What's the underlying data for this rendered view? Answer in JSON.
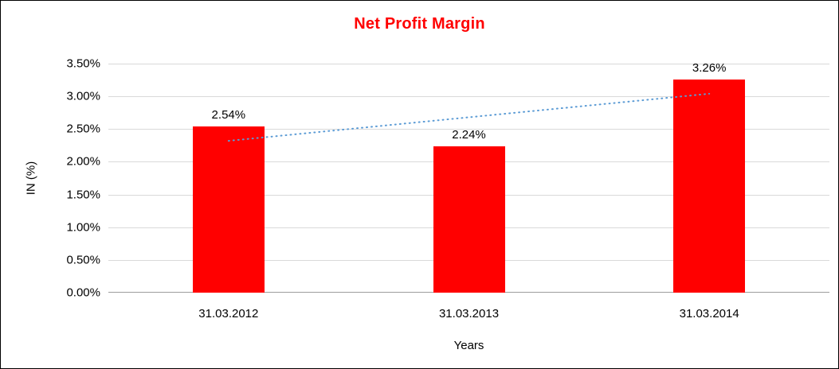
{
  "chart_data": {
    "type": "bar",
    "title": "Net Profit Margin",
    "xlabel": "Years",
    "ylabel": "IN (%)",
    "categories": [
      "31.03.2012",
      "31.03.2013",
      "31.03.2014"
    ],
    "values": [
      2.54,
      2.24,
      3.26
    ],
    "data_labels": [
      "2.54%",
      "2.24%",
      "3.26%"
    ],
    "ylim": [
      0,
      3.5
    ],
    "ytick_step": 0.5,
    "ytick_labels": [
      "0.00%",
      "0.50%",
      "1.00%",
      "1.50%",
      "2.00%",
      "2.50%",
      "3.00%",
      "3.50%"
    ],
    "grid": true,
    "legend": "none",
    "trendline": {
      "style": "dotted",
      "start_value": 2.32,
      "end_value": 3.04
    },
    "colors": {
      "bar": "#ff0000",
      "title": "#ff0000",
      "trendline": "#5b9bd5",
      "gridline": "#d9d9d9",
      "axis_line": "#9d9d9d",
      "text": "#000000",
      "background": "#ffffff",
      "border": "#000000"
    }
  }
}
